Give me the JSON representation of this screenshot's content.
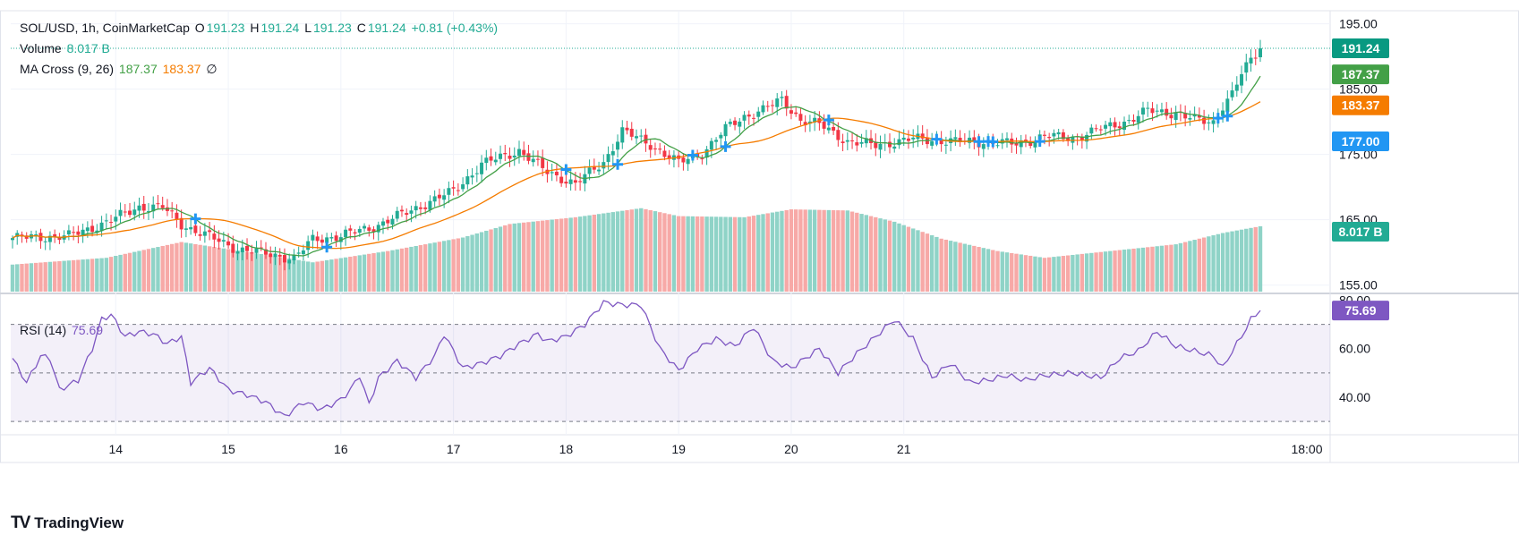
{
  "legend": {
    "symbol_line": "SOL/USD, 1h, CoinMarketCap",
    "o_label": "O",
    "o_value": "191.23",
    "h_label": "H",
    "h_value": "191.24",
    "l_label": "L",
    "l_value": "191.23",
    "c_label": "C",
    "c_value": "191.24",
    "change": "+0.81 (+0.43%)",
    "volume_label": "Volume",
    "volume_value": "8.017 B",
    "ma_label": "MA Cross (9, 26)",
    "ma_fast_value": "187.37",
    "ma_slow_value": "183.37",
    "ma_extra": "∅",
    "rsi_label": "RSI (14)",
    "rsi_value": "75.69"
  },
  "badges": {
    "price": "191.24",
    "ma_fast": "187.37",
    "ma_slow": "183.37",
    "level": "177.00",
    "volume": "8.017 B",
    "rsi": "75.69"
  },
  "brand": "TradingView",
  "colors": {
    "up": "#22ab94",
    "down": "#f23645",
    "ma_fast": "#43a047",
    "ma_slow": "#f57c00",
    "rsi": "#7e57c2",
    "level": "#2196f3"
  },
  "chart_data": [
    {
      "type": "candlestick",
      "title": "SOL/USD, 1h, CoinMarketCap",
      "ylim": [
        154,
        197
      ],
      "yticks": [
        "195.00",
        "185.00",
        "175.00",
        "165.00",
        "155.00"
      ],
      "xticks": [
        "14",
        "15",
        "16",
        "17",
        "18",
        "19",
        "20",
        "21",
        "18:00"
      ],
      "close_anchors": [
        [
          0,
          162.2
        ],
        [
          12,
          162.5
        ],
        [
          20,
          164.6
        ],
        [
          27,
          167.0
        ],
        [
          32,
          166.9
        ],
        [
          36,
          164.3
        ],
        [
          40,
          163.0
        ],
        [
          48,
          160.5
        ],
        [
          56,
          159.6
        ],
        [
          60,
          159.0
        ],
        [
          64,
          162.0
        ],
        [
          70,
          162.5
        ],
        [
          78,
          164.2
        ],
        [
          86,
          166.8
        ],
        [
          94,
          169.4
        ],
        [
          100,
          173.5
        ],
        [
          108,
          175.6
        ],
        [
          114,
          172.3
        ],
        [
          120,
          170.5
        ],
        [
          126,
          173.8
        ],
        [
          130,
          178.6
        ],
        [
          136,
          176.5
        ],
        [
          142,
          173.7
        ],
        [
          147,
          175.2
        ],
        [
          152,
          178.9
        ],
        [
          156,
          180.8
        ],
        [
          160,
          181.9
        ],
        [
          164,
          183.3
        ],
        [
          168,
          180.3
        ],
        [
          172,
          179.6
        ],
        [
          178,
          177.0
        ],
        [
          184,
          176.4
        ],
        [
          192,
          177.4
        ],
        [
          200,
          177.0
        ],
        [
          208,
          176.9
        ],
        [
          214,
          176.6
        ],
        [
          220,
          177.8
        ],
        [
          226,
          177.5
        ],
        [
          232,
          178.9
        ],
        [
          238,
          180.2
        ],
        [
          242,
          181.7
        ],
        [
          248,
          181.3
        ],
        [
          252,
          180.3
        ],
        [
          256,
          180.0
        ],
        [
          258,
          182.5
        ],
        [
          260,
          184.2
        ],
        [
          262,
          187.3
        ],
        [
          264,
          189.5
        ],
        [
          266,
          191.24
        ]
      ],
      "series": [
        {
          "name": "MA Cross (9, 26)",
          "values": [
            "187.37",
            "183.37"
          ]
        }
      ],
      "volume": {
        "name": "Volume",
        "last": "8.017 B",
        "anchors": [
          [
            0,
            0.24
          ],
          [
            20,
            0.3
          ],
          [
            36,
            0.44
          ],
          [
            52,
            0.34
          ],
          [
            64,
            0.26
          ],
          [
            80,
            0.36
          ],
          [
            96,
            0.48
          ],
          [
            106,
            0.6
          ],
          [
            120,
            0.66
          ],
          [
            134,
            0.74
          ],
          [
            142,
            0.67
          ],
          [
            156,
            0.66
          ],
          [
            166,
            0.73
          ],
          [
            178,
            0.72
          ],
          [
            188,
            0.62
          ],
          [
            198,
            0.47
          ],
          [
            210,
            0.36
          ],
          [
            220,
            0.3
          ],
          [
            234,
            0.36
          ],
          [
            248,
            0.42
          ],
          [
            258,
            0.52
          ],
          [
            266,
            0.58
          ]
        ]
      },
      "rsi": {
        "name": "RSI (14)",
        "last": "75.69",
        "ylim": [
          26,
          82
        ],
        "yticks": [
          "80.00",
          "60.00",
          "40.00"
        ],
        "overbought": 70,
        "oversold": 30,
        "mid": 50,
        "anchors": [
          [
            0,
            56
          ],
          [
            3,
            46
          ],
          [
            6,
            57
          ],
          [
            8,
            56
          ],
          [
            10,
            43
          ],
          [
            14,
            47
          ],
          [
            17,
            60
          ],
          [
            19,
            72
          ],
          [
            21,
            74
          ],
          [
            24,
            65
          ],
          [
            27,
            67
          ],
          [
            30,
            66
          ],
          [
            33,
            62
          ],
          [
            36,
            65
          ],
          [
            38,
            46
          ],
          [
            42,
            52
          ],
          [
            46,
            43
          ],
          [
            50,
            41
          ],
          [
            54,
            38
          ],
          [
            58,
            32
          ],
          [
            62,
            38
          ],
          [
            66,
            35
          ],
          [
            70,
            39
          ],
          [
            72,
            43
          ],
          [
            74,
            49
          ],
          [
            76,
            37
          ],
          [
            78,
            48
          ],
          [
            82,
            55
          ],
          [
            86,
            48
          ],
          [
            90,
            57
          ],
          [
            92,
            66
          ],
          [
            96,
            52
          ],
          [
            100,
            54
          ],
          [
            104,
            57
          ],
          [
            108,
            62
          ],
          [
            112,
            66
          ],
          [
            114,
            63
          ],
          [
            118,
            65
          ],
          [
            122,
            70
          ],
          [
            126,
            79
          ],
          [
            130,
            78
          ],
          [
            134,
            78
          ],
          [
            138,
            60
          ],
          [
            142,
            51
          ],
          [
            146,
            60
          ],
          [
            150,
            64
          ],
          [
            154,
            61
          ],
          [
            158,
            69
          ],
          [
            162,
            55
          ],
          [
            166,
            52
          ],
          [
            172,
            60
          ],
          [
            176,
            50
          ],
          [
            180,
            58
          ],
          [
            184,
            65
          ],
          [
            188,
            72
          ],
          [
            192,
            64
          ],
          [
            196,
            48
          ],
          [
            200,
            54
          ],
          [
            204,
            46
          ],
          [
            208,
            47
          ],
          [
            212,
            49
          ],
          [
            216,
            47
          ],
          [
            220,
            49
          ],
          [
            226,
            50
          ],
          [
            232,
            48
          ],
          [
            236,
            56
          ],
          [
            240,
            59
          ],
          [
            244,
            67
          ],
          [
            248,
            61
          ],
          [
            252,
            59
          ],
          [
            256,
            57
          ],
          [
            258,
            52
          ],
          [
            260,
            59
          ],
          [
            262,
            65
          ],
          [
            264,
            72
          ],
          [
            266,
            75.69
          ]
        ]
      }
    }
  ]
}
